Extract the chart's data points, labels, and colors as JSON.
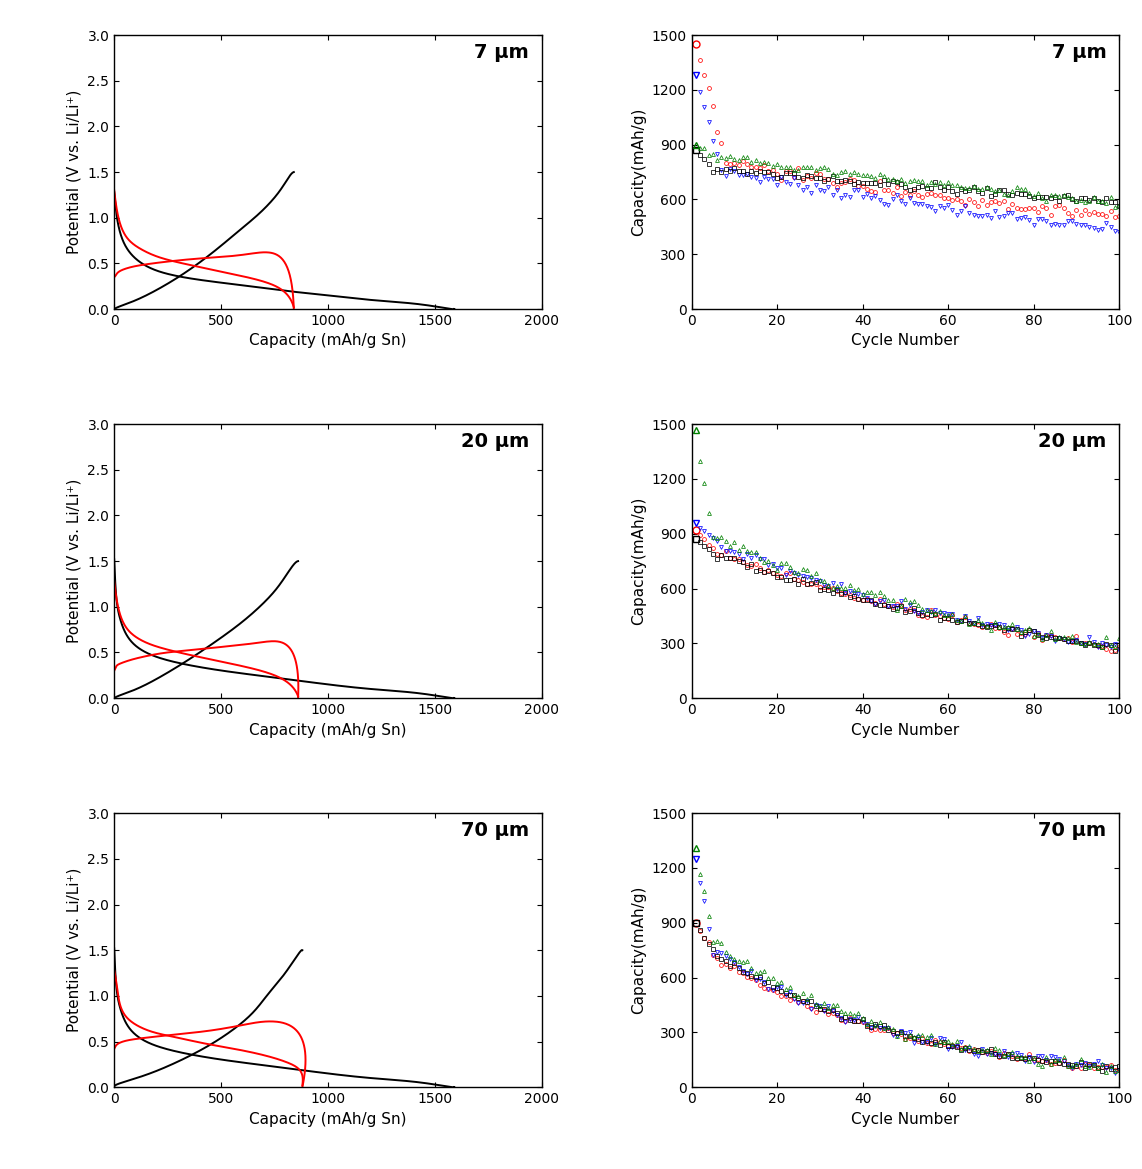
{
  "labels": [
    "7 μm",
    "20 μm",
    "70 μm"
  ],
  "xlabel_cd": "Capacity (mAh/g Sn)",
  "ylabel_cd": "Potential (V vs. Li/Li⁺)",
  "xlabel_cyc": "Cycle Number",
  "ylabel_cyc": "Capacity(mAh/g)",
  "xlim_cd": [
    0,
    2000
  ],
  "ylim_cd": [
    0.0,
    3.0
  ],
  "xlim_cyc": [
    0,
    100
  ],
  "ylim_cyc": [
    0,
    1500
  ],
  "yticks_cd": [
    0.0,
    0.5,
    1.0,
    1.5,
    2.0,
    2.5,
    3.0
  ],
  "yticks_cyc": [
    0,
    300,
    600,
    900,
    1200,
    1500
  ],
  "xticks_cd": [
    0,
    500,
    1000,
    1500,
    2000
  ],
  "xticks_cyc": [
    0,
    20,
    40,
    60,
    80,
    100
  ],
  "cd_curves": [
    {
      "label": "7 μm",
      "black_dis_x": [
        0,
        10,
        30,
        80,
        200,
        400,
        600,
        800,
        1000,
        1200,
        1400,
        1550,
        1590
      ],
      "black_dis_y": [
        1.28,
        1.05,
        0.82,
        0.6,
        0.42,
        0.32,
        0.26,
        0.2,
        0.15,
        0.1,
        0.06,
        0.01,
        0.0
      ],
      "black_chg_x": [
        0,
        50,
        150,
        300,
        450,
        580,
        680,
        760,
        810,
        840
      ],
      "black_chg_y": [
        0.0,
        0.05,
        0.15,
        0.35,
        0.6,
        0.85,
        1.05,
        1.25,
        1.42,
        1.5
      ],
      "red_dis_x": [
        0,
        10,
        30,
        80,
        150,
        250,
        380,
        500,
        620,
        720,
        800,
        840
      ],
      "red_dis_y": [
        0.35,
        0.38,
        0.42,
        0.46,
        0.49,
        0.52,
        0.55,
        0.57,
        0.6,
        0.62,
        0.5,
        0.0
      ],
      "red_chg_x": [
        0,
        20,
        60,
        130,
        220,
        340,
        460,
        580,
        700,
        790,
        840
      ],
      "red_chg_y": [
        1.3,
        1.0,
        0.78,
        0.65,
        0.56,
        0.49,
        0.43,
        0.37,
        0.3,
        0.2,
        0.02
      ]
    },
    {
      "label": "20 μm",
      "black_dis_x": [
        0,
        10,
        30,
        80,
        200,
        400,
        600,
        800,
        1000,
        1200,
        1400,
        1550,
        1590
      ],
      "black_dis_y": [
        1.52,
        1.1,
        0.85,
        0.62,
        0.45,
        0.34,
        0.27,
        0.21,
        0.15,
        0.1,
        0.06,
        0.01,
        0.0
      ],
      "black_chg_x": [
        0,
        50,
        150,
        300,
        450,
        580,
        680,
        760,
        820,
        860
      ],
      "black_chg_y": [
        0.0,
        0.05,
        0.15,
        0.35,
        0.58,
        0.8,
        1.0,
        1.2,
        1.4,
        1.5
      ],
      "red_dis_x": [
        0,
        10,
        30,
        80,
        150,
        250,
        380,
        500,
        620,
        720,
        820,
        860
      ],
      "red_dis_y": [
        0.3,
        0.35,
        0.38,
        0.42,
        0.46,
        0.5,
        0.53,
        0.56,
        0.59,
        0.62,
        0.55,
        0.0
      ],
      "red_chg_x": [
        0,
        20,
        60,
        130,
        220,
        340,
        460,
        580,
        700,
        800,
        860
      ],
      "red_chg_y": [
        1.28,
        0.98,
        0.76,
        0.63,
        0.55,
        0.48,
        0.42,
        0.36,
        0.29,
        0.19,
        0.02
      ]
    },
    {
      "label": "70 μm",
      "black_dis_x": [
        0,
        10,
        30,
        80,
        200,
        400,
        600,
        800,
        1000,
        1200,
        1400,
        1550,
        1590
      ],
      "black_dis_y": [
        1.52,
        1.1,
        0.85,
        0.62,
        0.45,
        0.34,
        0.27,
        0.21,
        0.15,
        0.1,
        0.06,
        0.01,
        0.0
      ],
      "black_chg_x": [
        0,
        50,
        200,
        400,
        550,
        650,
        720,
        790,
        850,
        880
      ],
      "black_chg_y": [
        0.0,
        0.06,
        0.18,
        0.4,
        0.62,
        0.82,
        1.02,
        1.22,
        1.42,
        1.5
      ],
      "red_dis_x": [
        0,
        10,
        30,
        80,
        180,
        300,
        450,
        600,
        730,
        860,
        880
      ],
      "red_dis_y": [
        0.42,
        0.46,
        0.49,
        0.52,
        0.55,
        0.58,
        0.62,
        0.68,
        0.72,
        0.6,
        0.0
      ],
      "red_chg_x": [
        0,
        20,
        60,
        160,
        280,
        420,
        560,
        700,
        810,
        870,
        880
      ],
      "red_chg_y": [
        1.28,
        0.98,
        0.76,
        0.62,
        0.55,
        0.48,
        0.42,
        0.35,
        0.27,
        0.18,
        0.02
      ]
    }
  ],
  "cycle_data": [
    {
      "label": "7 μm",
      "series": [
        {
          "color": "red",
          "marker": "o",
          "first_y": 1450,
          "second_y": 800,
          "final_y": 500,
          "knee": 8
        },
        {
          "color": "blue",
          "marker": "v",
          "first_y": 1280,
          "second_y": 760,
          "final_y": 430,
          "knee": 7
        },
        {
          "color": "black",
          "marker": "s",
          "first_y": 870,
          "second_y": 770,
          "final_y": 590,
          "knee": 5
        },
        {
          "color": "green",
          "marker": "^",
          "first_y": 900,
          "second_y": 840,
          "final_y": 580,
          "knee": 5
        }
      ]
    },
    {
      "label": "20 μm",
      "series": [
        {
          "color": "red",
          "marker": "o",
          "first_y": 920,
          "second_y": 800,
          "final_y": 280,
          "knee": 6
        },
        {
          "color": "blue",
          "marker": "v",
          "first_y": 960,
          "second_y": 840,
          "final_y": 280,
          "knee": 6
        },
        {
          "color": "black",
          "marker": "s",
          "first_y": 870,
          "second_y": 800,
          "final_y": 280,
          "knee": 5
        },
        {
          "color": "green",
          "marker": "^",
          "first_y": 1470,
          "second_y": 880,
          "final_y": 280,
          "knee": 5
        }
      ]
    },
    {
      "label": "70 μm",
      "series": [
        {
          "color": "red",
          "marker": "o",
          "first_y": 900,
          "second_y": 700,
          "final_y": 100,
          "knee": 6
        },
        {
          "color": "blue",
          "marker": "v",
          "first_y": 1250,
          "second_y": 750,
          "final_y": 100,
          "knee": 5
        },
        {
          "color": "black",
          "marker": "s",
          "first_y": 900,
          "second_y": 720,
          "final_y": 100,
          "knee": 6
        },
        {
          "color": "green",
          "marker": "^",
          "first_y": 1310,
          "second_y": 800,
          "final_y": 100,
          "knee": 5
        }
      ]
    }
  ]
}
